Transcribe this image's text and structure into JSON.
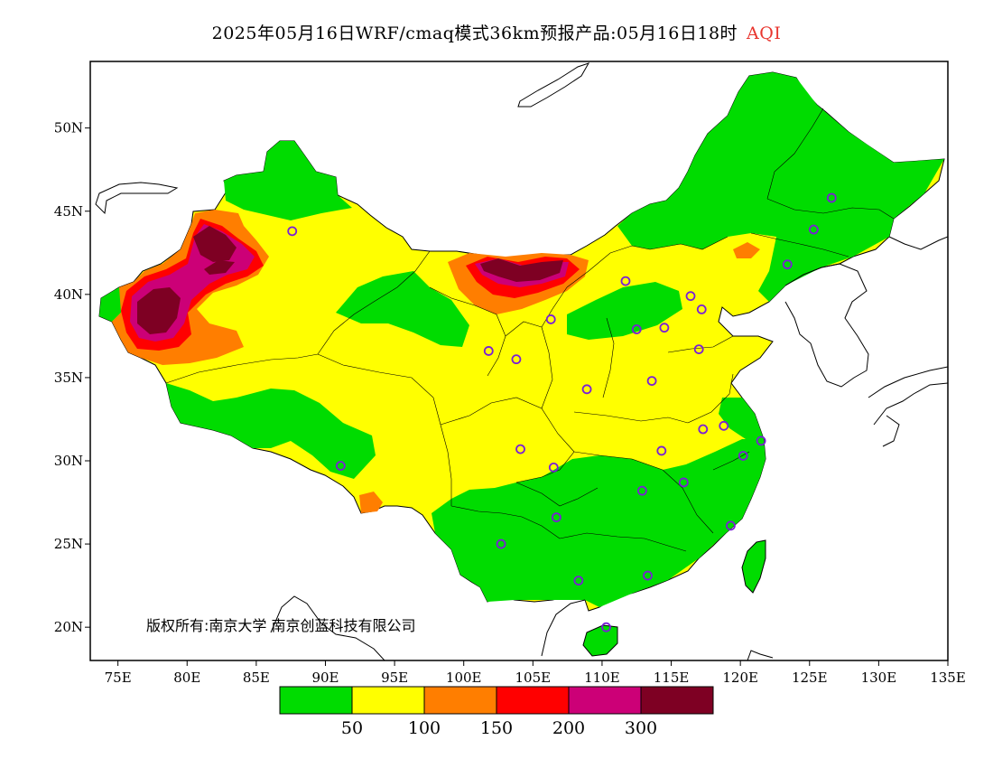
{
  "title": {
    "main": "2025年05月16日WRF/cmaq模式36km预报产品:05月16日18时",
    "variable": "AQI",
    "variable_color": "#e8352e"
  },
  "copyright": "版权所有:南京大学 南京创蓝科技有限公司",
  "axes": {
    "x_ticks": [
      "75E",
      "80E",
      "85E",
      "90E",
      "95E",
      "100E",
      "105E",
      "110E",
      "115E",
      "120E",
      "125E",
      "130E",
      "135E"
    ],
    "y_ticks": [
      "20N",
      "25N",
      "30N",
      "35N",
      "40N",
      "45N",
      "50N"
    ],
    "lon_range": [
      73,
      135
    ],
    "lat_range": [
      18,
      54
    ]
  },
  "legend": {
    "colors": [
      "#00dc00",
      "#ffff00",
      "#ff7e00",
      "#ff0000",
      "#cc0077",
      "#7e0023"
    ],
    "labels": [
      "50",
      "100",
      "150",
      "200",
      "300"
    ]
  },
  "colors": {
    "land_default": "#ffff00",
    "background": "#ffffff",
    "station_marker": "#7a1fd6"
  },
  "stations": [
    {
      "lon": 87.6,
      "lat": 43.8
    },
    {
      "lon": 91.1,
      "lat": 29.7
    },
    {
      "lon": 101.8,
      "lat": 36.6
    },
    {
      "lon": 103.8,
      "lat": 36.1
    },
    {
      "lon": 106.3,
      "lat": 38.5
    },
    {
      "lon": 111.7,
      "lat": 40.8
    },
    {
      "lon": 112.5,
      "lat": 37.9
    },
    {
      "lon": 114.5,
      "lat": 38.0
    },
    {
      "lon": 116.4,
      "lat": 39.9
    },
    {
      "lon": 117.2,
      "lat": 39.1
    },
    {
      "lon": 117.0,
      "lat": 36.7
    },
    {
      "lon": 113.6,
      "lat": 34.8
    },
    {
      "lon": 108.9,
      "lat": 34.3
    },
    {
      "lon": 104.1,
      "lat": 30.7
    },
    {
      "lon": 106.5,
      "lat": 29.6
    },
    {
      "lon": 106.7,
      "lat": 26.6
    },
    {
      "lon": 102.7,
      "lat": 25.0
    },
    {
      "lon": 108.3,
      "lat": 22.8
    },
    {
      "lon": 113.3,
      "lat": 23.1
    },
    {
      "lon": 110.3,
      "lat": 20.0
    },
    {
      "lon": 112.9,
      "lat": 28.2
    },
    {
      "lon": 115.9,
      "lat": 28.7
    },
    {
      "lon": 114.3,
      "lat": 30.6
    },
    {
      "lon": 117.3,
      "lat": 31.9
    },
    {
      "lon": 118.8,
      "lat": 32.1
    },
    {
      "lon": 120.2,
      "lat": 30.3
    },
    {
      "lon": 121.5,
      "lat": 31.2
    },
    {
      "lon": 119.3,
      "lat": 26.1
    },
    {
      "lon": 123.4,
      "lat": 41.8
    },
    {
      "lon": 125.3,
      "lat": 43.9
    },
    {
      "lon": 126.6,
      "lat": 45.8
    }
  ]
}
